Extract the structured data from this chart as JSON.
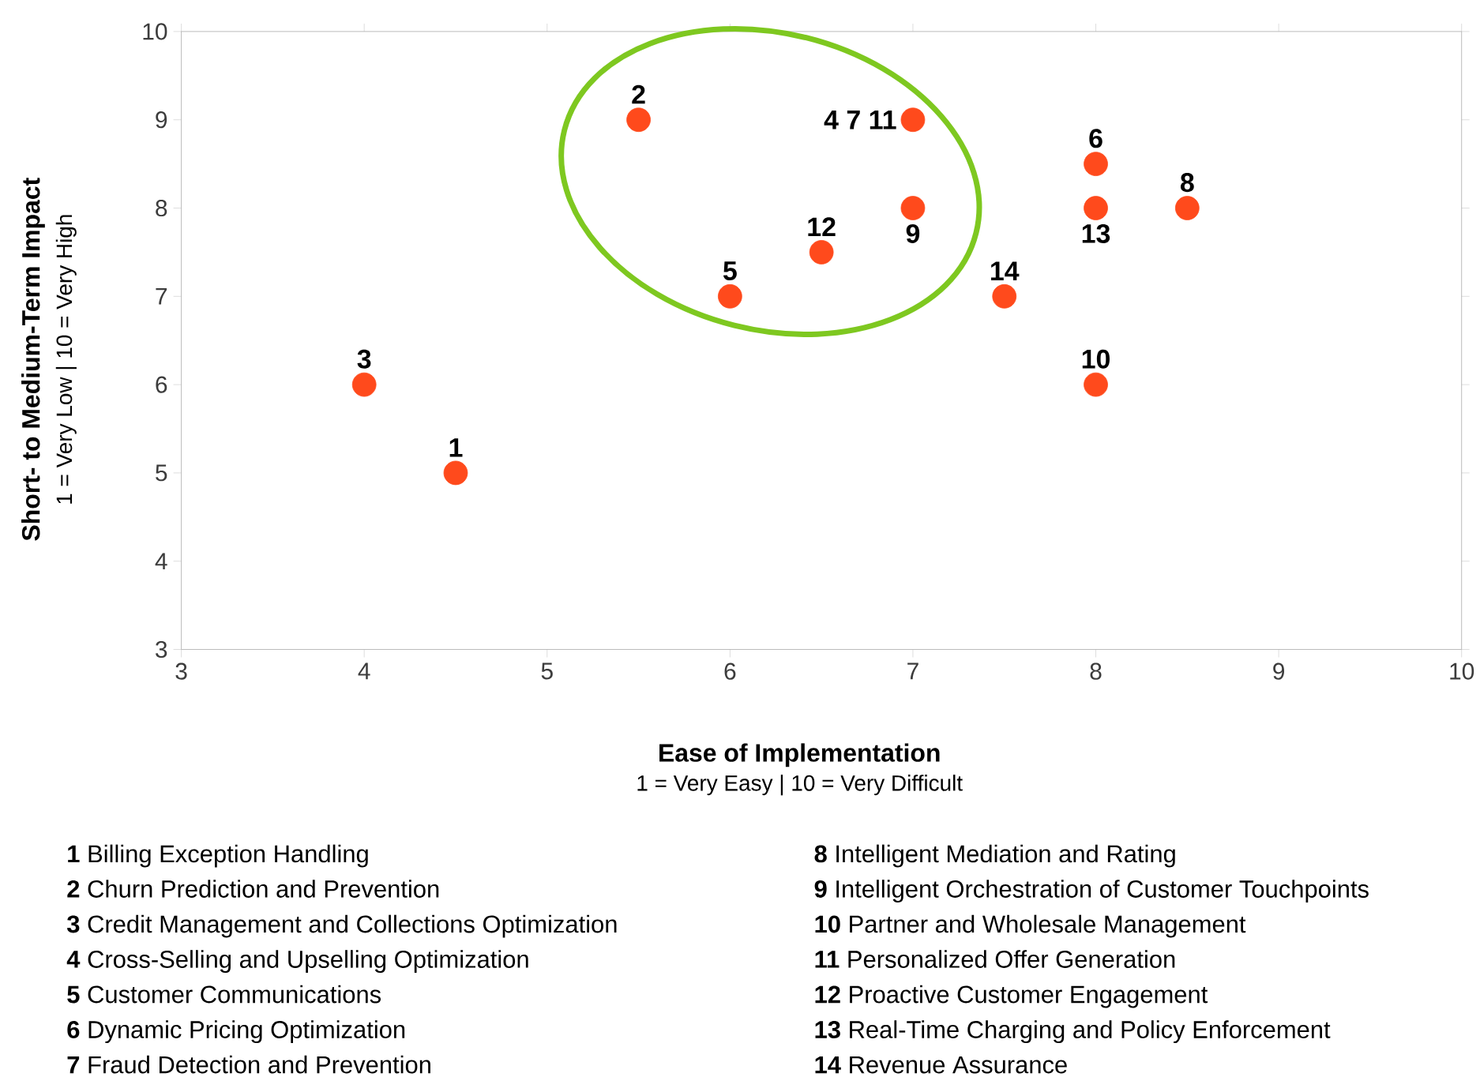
{
  "chart_data": {
    "type": "scatter",
    "xlabel": "Ease of Implementation",
    "ylabel": "Short- to Medium-Term Impact",
    "xlim": [
      3,
      10
    ],
    "ylim": [
      3,
      10
    ],
    "xticks": [
      3,
      4,
      5,
      6,
      7,
      8,
      9,
      10
    ],
    "yticks": [
      3,
      4,
      5,
      6,
      7,
      8,
      9,
      10
    ],
    "grid": false,
    "marker": "circle",
    "series": [
      {
        "color": "#ff4a1c",
        "x": [
          4.5,
          5.5,
          4,
          7,
          6,
          8,
          8.5,
          7,
          8,
          6.5,
          8,
          7.5
        ],
        "values": [
          5,
          9,
          6,
          9,
          7,
          8.5,
          8,
          8,
          6,
          7.5,
          8,
          7
        ]
      }
    ],
    "annotations": [
      "1 = Very Easy | 10 = Very Difficult",
      "1 = Very Low | 10 = Very High",
      "**1** Billing Exception Handling",
      "**2** Churn Prediction and Prevention",
      "**3** Credit Management and Collections Optimization",
      "**4** Cross-Selling and Upselling Optimization",
      "**5** Customer Communications",
      "**6** Dynamic Pricing Optimization",
      "**7** Fraud Detection and Prevention",
      "**8** Intelligent Mediation and Rating",
      "**9** Intelligent Orchestration of Customer Touchpoints",
      "**10** Partner and Wholesale Management",
      "**11** Personalized Offer Generation",
      "**12** Proactive Customer Engagement",
      "**13** Real-Time Charging and Policy Enforcement",
      "**14** Revenue Assurance",
      {
        "text": "1",
        "x": 4.5,
        "y": 5
      },
      {
        "text": "2",
        "x": 5.5,
        "y": 9
      },
      {
        "text": "3",
        "x": 4,
        "y": 6
      },
      {
        "text": "4 7 11",
        "x": 7,
        "y": 9
      },
      {
        "text": "5",
        "x": 6,
        "y": 7
      },
      {
        "text": "6",
        "x": 8,
        "y": 8.5
      },
      {
        "text": "8",
        "x": 8.5,
        "y": 8
      },
      {
        "text": "9",
        "x": 7,
        "y": 8
      },
      {
        "text": "10",
        "x": 8,
        "y": 6
      },
      {
        "text": "12",
        "x": 6.5,
        "y": 7.5
      },
      {
        "text": "13",
        "x": 8,
        "y": 8
      },
      {
        "text": "14",
        "x": 7.5,
        "y": 7
      }
    ]
  }
}
